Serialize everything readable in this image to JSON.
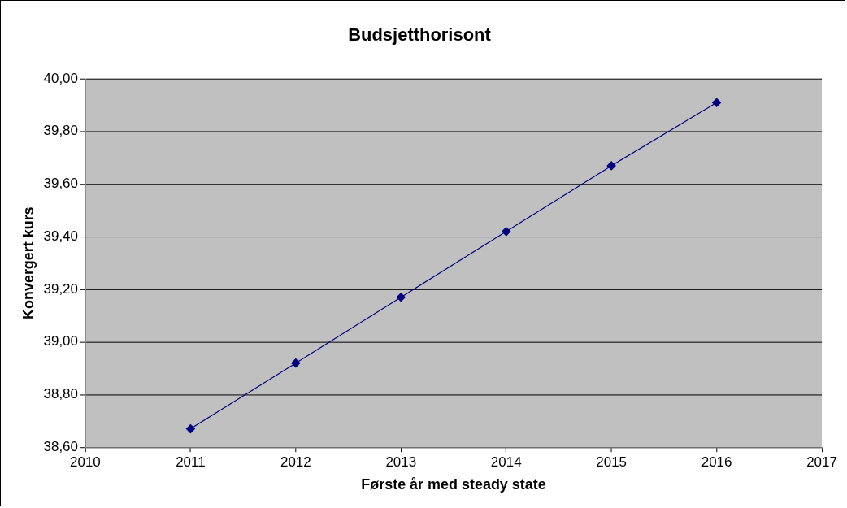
{
  "chart_data": {
    "type": "line",
    "title": "Budsjetthorisont",
    "xlabel": "Første år med steady state",
    "ylabel": "Konvergert kurs",
    "x": [
      2011,
      2012,
      2013,
      2014,
      2015,
      2016
    ],
    "series": [
      {
        "color": "#000080",
        "values": [
          38.67,
          38.92,
          39.17,
          39.42,
          39.67,
          39.91
        ]
      }
    ],
    "xlim": [
      2010,
      2017
    ],
    "xticks": [
      2010,
      2011,
      2012,
      2013,
      2014,
      2015,
      2016,
      2017
    ],
    "ylim": [
      38.6,
      40.0
    ],
    "yticks": [
      {
        "value": 38.6,
        "label": "38,60"
      },
      {
        "value": 38.8,
        "label": "38,80"
      },
      {
        "value": 39.0,
        "label": "39,00"
      },
      {
        "value": 39.2,
        "label": "39,20"
      },
      {
        "value": 39.4,
        "label": "39,40"
      },
      {
        "value": 39.6,
        "label": "39,60"
      },
      {
        "value": 39.8,
        "label": "39,80"
      },
      {
        "value": 40.0,
        "label": "40,00"
      }
    ],
    "grid": "y",
    "legend": false,
    "marker": "diamond",
    "line_style": "solid"
  }
}
